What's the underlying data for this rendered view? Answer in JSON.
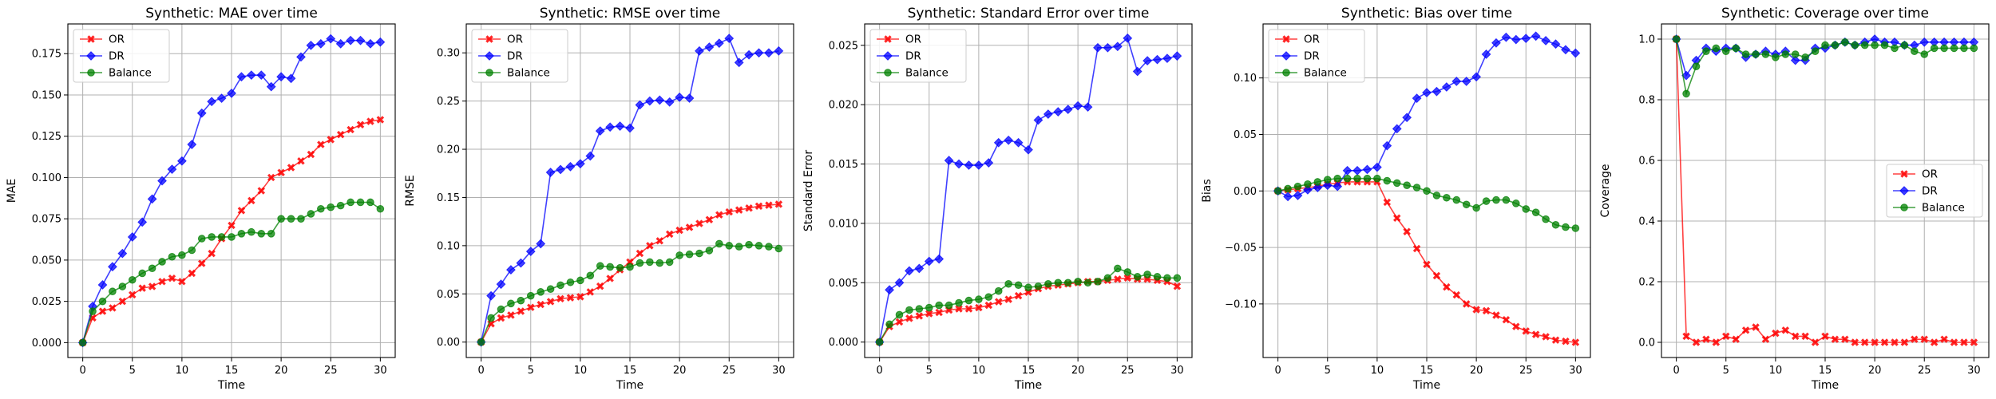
{
  "figure": {
    "title": "",
    "colors": {
      "OR": "#ff0000",
      "DR": "#0000ff",
      "Balance": "#008000"
    },
    "markers": {
      "OR": "x-filled",
      "DR": "diamond",
      "Balance": "circle"
    }
  },
  "chart_data": [
    {
      "type": "line",
      "title": "Synthetic: MAE over time",
      "xlabel": "Time",
      "ylabel": "MAE",
      "xlim": [
        -1.5,
        31.5
      ],
      "ylim": [
        -0.009,
        0.193
      ],
      "xticks": [
        0,
        5,
        10,
        15,
        20,
        25,
        30
      ],
      "xtick_labels": [
        "0",
        "5",
        "10",
        "15",
        "20",
        "25",
        "30"
      ],
      "yticks": [
        0,
        0.025,
        0.05,
        0.075,
        0.1,
        0.125,
        0.15,
        0.175
      ],
      "ytick_labels": [
        "0.000",
        "0.025",
        "0.050",
        "0.075",
        "0.100",
        "0.125",
        "0.150",
        "0.175"
      ],
      "grid": true,
      "legend_position": "upper-left",
      "x": [
        0,
        1,
        2,
        3,
        4,
        5,
        6,
        7,
        8,
        9,
        10,
        11,
        12,
        13,
        14,
        15,
        16,
        17,
        18,
        19,
        20,
        21,
        22,
        23,
        24,
        25,
        26,
        27,
        28,
        29,
        30
      ],
      "series": [
        {
          "name": "OR",
          "values": [
            0.0,
            0.015,
            0.019,
            0.021,
            0.025,
            0.029,
            0.033,
            0.034,
            0.037,
            0.039,
            0.037,
            0.042,
            0.048,
            0.054,
            0.063,
            0.071,
            0.08,
            0.086,
            0.092,
            0.1,
            0.103,
            0.106,
            0.11,
            0.114,
            0.12,
            0.123,
            0.126,
            0.129,
            0.132,
            0.134,
            0.135
          ]
        },
        {
          "name": "DR",
          "values": [
            0.0,
            0.022,
            0.035,
            0.046,
            0.054,
            0.064,
            0.073,
            0.087,
            0.098,
            0.105,
            0.11,
            0.12,
            0.139,
            0.146,
            0.148,
            0.151,
            0.161,
            0.162,
            0.162,
            0.155,
            0.161,
            0.16,
            0.173,
            0.18,
            0.181,
            0.184,
            0.181,
            0.183,
            0.183,
            0.181,
            0.182
          ]
        },
        {
          "name": "Balance",
          "values": [
            0.0,
            0.019,
            0.025,
            0.031,
            0.034,
            0.038,
            0.042,
            0.045,
            0.049,
            0.052,
            0.053,
            0.056,
            0.063,
            0.064,
            0.064,
            0.064,
            0.066,
            0.067,
            0.066,
            0.066,
            0.075,
            0.075,
            0.075,
            0.078,
            0.081,
            0.082,
            0.083,
            0.085,
            0.085,
            0.085,
            0.081
          ]
        }
      ]
    },
    {
      "type": "line",
      "title": "Synthetic: RMSE over time",
      "xlabel": "Time",
      "ylabel": "RMSE",
      "xlim": [
        -1.5,
        31.5
      ],
      "ylim": [
        -0.016,
        0.33
      ],
      "xticks": [
        0,
        5,
        10,
        15,
        20,
        25,
        30
      ],
      "xtick_labels": [
        "0",
        "5",
        "10",
        "15",
        "20",
        "25",
        "30"
      ],
      "yticks": [
        0,
        0.05,
        0.1,
        0.15,
        0.2,
        0.25,
        0.3
      ],
      "ytick_labels": [
        "0.00",
        "0.05",
        "0.10",
        "0.15",
        "0.20",
        "0.25",
        "0.30"
      ],
      "grid": true,
      "legend_position": "upper-left",
      "x": [
        0,
        1,
        2,
        3,
        4,
        5,
        6,
        7,
        8,
        9,
        10,
        11,
        12,
        13,
        14,
        15,
        16,
        17,
        18,
        19,
        20,
        21,
        22,
        23,
        24,
        25,
        26,
        27,
        28,
        29,
        30
      ],
      "series": [
        {
          "name": "OR",
          "values": [
            0.0,
            0.019,
            0.025,
            0.028,
            0.032,
            0.036,
            0.039,
            0.042,
            0.045,
            0.046,
            0.047,
            0.052,
            0.058,
            0.066,
            0.075,
            0.083,
            0.092,
            0.1,
            0.105,
            0.112,
            0.116,
            0.119,
            0.123,
            0.127,
            0.132,
            0.135,
            0.137,
            0.139,
            0.141,
            0.142,
            0.143
          ]
        },
        {
          "name": "DR",
          "values": [
            0.0,
            0.048,
            0.06,
            0.075,
            0.082,
            0.094,
            0.102,
            0.176,
            0.179,
            0.182,
            0.185,
            0.193,
            0.219,
            0.223,
            0.224,
            0.222,
            0.246,
            0.25,
            0.251,
            0.249,
            0.254,
            0.253,
            0.302,
            0.306,
            0.31,
            0.315,
            0.29,
            0.298,
            0.3,
            0.3,
            0.302
          ]
        },
        {
          "name": "Balance",
          "values": [
            0.0,
            0.025,
            0.034,
            0.04,
            0.043,
            0.048,
            0.052,
            0.055,
            0.059,
            0.062,
            0.064,
            0.069,
            0.079,
            0.078,
            0.077,
            0.078,
            0.082,
            0.083,
            0.082,
            0.083,
            0.09,
            0.091,
            0.092,
            0.095,
            0.102,
            0.1,
            0.099,
            0.101,
            0.1,
            0.099,
            0.097
          ]
        }
      ]
    },
    {
      "type": "line",
      "title": "Synthetic: Standard Error over time",
      "xlabel": "Time",
      "ylabel": "Standard Error",
      "xlim": [
        -1.5,
        31.5
      ],
      "ylim": [
        -0.0013,
        0.0268
      ],
      "xticks": [
        0,
        5,
        10,
        15,
        20,
        25,
        30
      ],
      "xtick_labels": [
        "0",
        "5",
        "10",
        "15",
        "20",
        "25",
        "30"
      ],
      "yticks": [
        0,
        0.005,
        0.01,
        0.015,
        0.02,
        0.025
      ],
      "ytick_labels": [
        "0.000",
        "0.005",
        "0.010",
        "0.015",
        "0.020",
        "0.025"
      ],
      "grid": true,
      "legend_position": "upper-left",
      "x": [
        0,
        1,
        2,
        3,
        4,
        5,
        6,
        7,
        8,
        9,
        10,
        11,
        12,
        13,
        14,
        15,
        16,
        17,
        18,
        19,
        20,
        21,
        22,
        23,
        24,
        25,
        26,
        27,
        28,
        29,
        30
      ],
      "series": [
        {
          "name": "OR",
          "values": [
            0.0,
            0.0013,
            0.0017,
            0.002,
            0.0022,
            0.0024,
            0.0025,
            0.0027,
            0.0028,
            0.0028,
            0.0029,
            0.0031,
            0.0034,
            0.0036,
            0.0039,
            0.0042,
            0.0045,
            0.0047,
            0.0048,
            0.0049,
            0.005,
            0.0051,
            0.0051,
            0.0052,
            0.0053,
            0.0054,
            0.0053,
            0.0053,
            0.0052,
            0.0051,
            0.0047
          ]
        },
        {
          "name": "DR",
          "values": [
            0.0,
            0.0044,
            0.005,
            0.006,
            0.0062,
            0.0068,
            0.007,
            0.0153,
            0.015,
            0.0149,
            0.0149,
            0.0151,
            0.0168,
            0.017,
            0.0168,
            0.0162,
            0.0187,
            0.0192,
            0.0194,
            0.0196,
            0.0199,
            0.0198,
            0.0248,
            0.0248,
            0.0249,
            0.0256,
            0.0228,
            0.0237,
            0.0238,
            0.0239,
            0.0241
          ]
        },
        {
          "name": "Balance",
          "values": [
            0.0,
            0.0015,
            0.0023,
            0.0027,
            0.0028,
            0.0029,
            0.0031,
            0.0031,
            0.0033,
            0.0035,
            0.0036,
            0.0038,
            0.0043,
            0.0049,
            0.0048,
            0.0046,
            0.0047,
            0.0049,
            0.005,
            0.005,
            0.0051,
            0.005,
            0.0051,
            0.0054,
            0.0062,
            0.0059,
            0.0055,
            0.0057,
            0.0055,
            0.0054,
            0.0054
          ]
        }
      ]
    },
    {
      "type": "line",
      "title": "Synthetic: Bias over time",
      "xlabel": "Time",
      "ylabel": "Bias",
      "xlim": [
        -1.5,
        31.5
      ],
      "ylim": [
        -0.1474,
        0.1478
      ],
      "xticks": [
        0,
        5,
        10,
        15,
        20,
        25,
        30
      ],
      "xtick_labels": [
        "0",
        "5",
        "10",
        "15",
        "20",
        "25",
        "30"
      ],
      "yticks": [
        -0.1,
        -0.05,
        0,
        0.05,
        0.1
      ],
      "ytick_labels": [
        "−0.10",
        "−0.05",
        "0.00",
        "0.05",
        "0.10"
      ],
      "grid": true,
      "legend_position": "upper-left",
      "x": [
        0,
        1,
        2,
        3,
        4,
        5,
        6,
        7,
        8,
        9,
        10,
        11,
        12,
        13,
        14,
        15,
        16,
        17,
        18,
        19,
        20,
        21,
        22,
        23,
        24,
        25,
        26,
        27,
        28,
        29,
        30
      ],
      "series": [
        {
          "name": "OR",
          "values": [
            0.0,
            0.001,
            0.002,
            0.003,
            0.004,
            0.006,
            0.007,
            0.008,
            0.008,
            0.008,
            0.008,
            -0.01,
            -0.024,
            -0.036,
            -0.051,
            -0.065,
            -0.075,
            -0.085,
            -0.092,
            -0.1,
            -0.105,
            -0.106,
            -0.11,
            -0.114,
            -0.12,
            -0.124,
            -0.127,
            -0.129,
            -0.132,
            -0.133,
            -0.134
          ]
        },
        {
          "name": "DR",
          "values": [
            0.0,
            -0.005,
            -0.004,
            0.001,
            0.003,
            0.005,
            0.004,
            0.018,
            0.018,
            0.019,
            0.021,
            0.04,
            0.055,
            0.065,
            0.082,
            0.087,
            0.088,
            0.092,
            0.097,
            0.097,
            0.101,
            0.121,
            0.131,
            0.136,
            0.134,
            0.135,
            0.137,
            0.133,
            0.13,
            0.125,
            0.122
          ]
        },
        {
          "name": "Balance",
          "values": [
            0.0,
            0.002,
            0.004,
            0.006,
            0.008,
            0.01,
            0.011,
            0.011,
            0.011,
            0.011,
            0.011,
            0.009,
            0.007,
            0.005,
            0.003,
            0.0,
            -0.004,
            -0.006,
            -0.008,
            -0.012,
            -0.015,
            -0.009,
            -0.008,
            -0.008,
            -0.011,
            -0.016,
            -0.019,
            -0.025,
            -0.03,
            -0.032,
            -0.033
          ]
        }
      ]
    },
    {
      "type": "line",
      "title": "Synthetic: Coverage over time",
      "xlabel": "Time",
      "ylabel": "Coverage",
      "xlim": [
        -1.5,
        31.5
      ],
      "ylim": [
        -0.05,
        1.05
      ],
      "xticks": [
        0,
        5,
        10,
        15,
        20,
        25,
        30
      ],
      "xtick_labels": [
        "0",
        "5",
        "10",
        "15",
        "20",
        "25",
        "30"
      ],
      "yticks": [
        0,
        0.2,
        0.4,
        0.6,
        0.8,
        1.0
      ],
      "ytick_labels": [
        "0.0",
        "0.2",
        "0.4",
        "0.6",
        "0.8",
        "1.0"
      ],
      "grid": true,
      "legend_position": "center-right",
      "x": [
        0,
        1,
        2,
        3,
        4,
        5,
        6,
        7,
        8,
        9,
        10,
        11,
        12,
        13,
        14,
        15,
        16,
        17,
        18,
        19,
        20,
        21,
        22,
        23,
        24,
        25,
        26,
        27,
        28,
        29,
        30
      ],
      "series": [
        {
          "name": "OR",
          "values": [
            1.0,
            0.02,
            0.0,
            0.01,
            0.0,
            0.02,
            0.01,
            0.04,
            0.05,
            0.01,
            0.03,
            0.04,
            0.02,
            0.02,
            0.0,
            0.02,
            0.01,
            0.01,
            0.0,
            0.0,
            0.0,
            0.0,
            0.0,
            0.0,
            0.01,
            0.01,
            0.0,
            0.01,
            0.0,
            0.0,
            0.0
          ]
        },
        {
          "name": "DR",
          "values": [
            1.0,
            0.88,
            0.93,
            0.97,
            0.96,
            0.97,
            0.97,
            0.94,
            0.95,
            0.96,
            0.95,
            0.96,
            0.93,
            0.93,
            0.97,
            0.97,
            0.98,
            0.99,
            0.98,
            0.99,
            1.0,
            0.99,
            0.99,
            0.98,
            0.98,
            0.99,
            0.99,
            0.99,
            0.99,
            0.99,
            0.99
          ]
        },
        {
          "name": "Balance",
          "values": [
            1.0,
            0.82,
            0.91,
            0.96,
            0.97,
            0.96,
            0.97,
            0.95,
            0.95,
            0.95,
            0.94,
            0.95,
            0.95,
            0.94,
            0.96,
            0.98,
            0.98,
            0.99,
            0.98,
            0.98,
            0.98,
            0.98,
            0.97,
            0.98,
            0.96,
            0.95,
            0.97,
            0.97,
            0.97,
            0.97,
            0.97
          ]
        }
      ]
    }
  ]
}
